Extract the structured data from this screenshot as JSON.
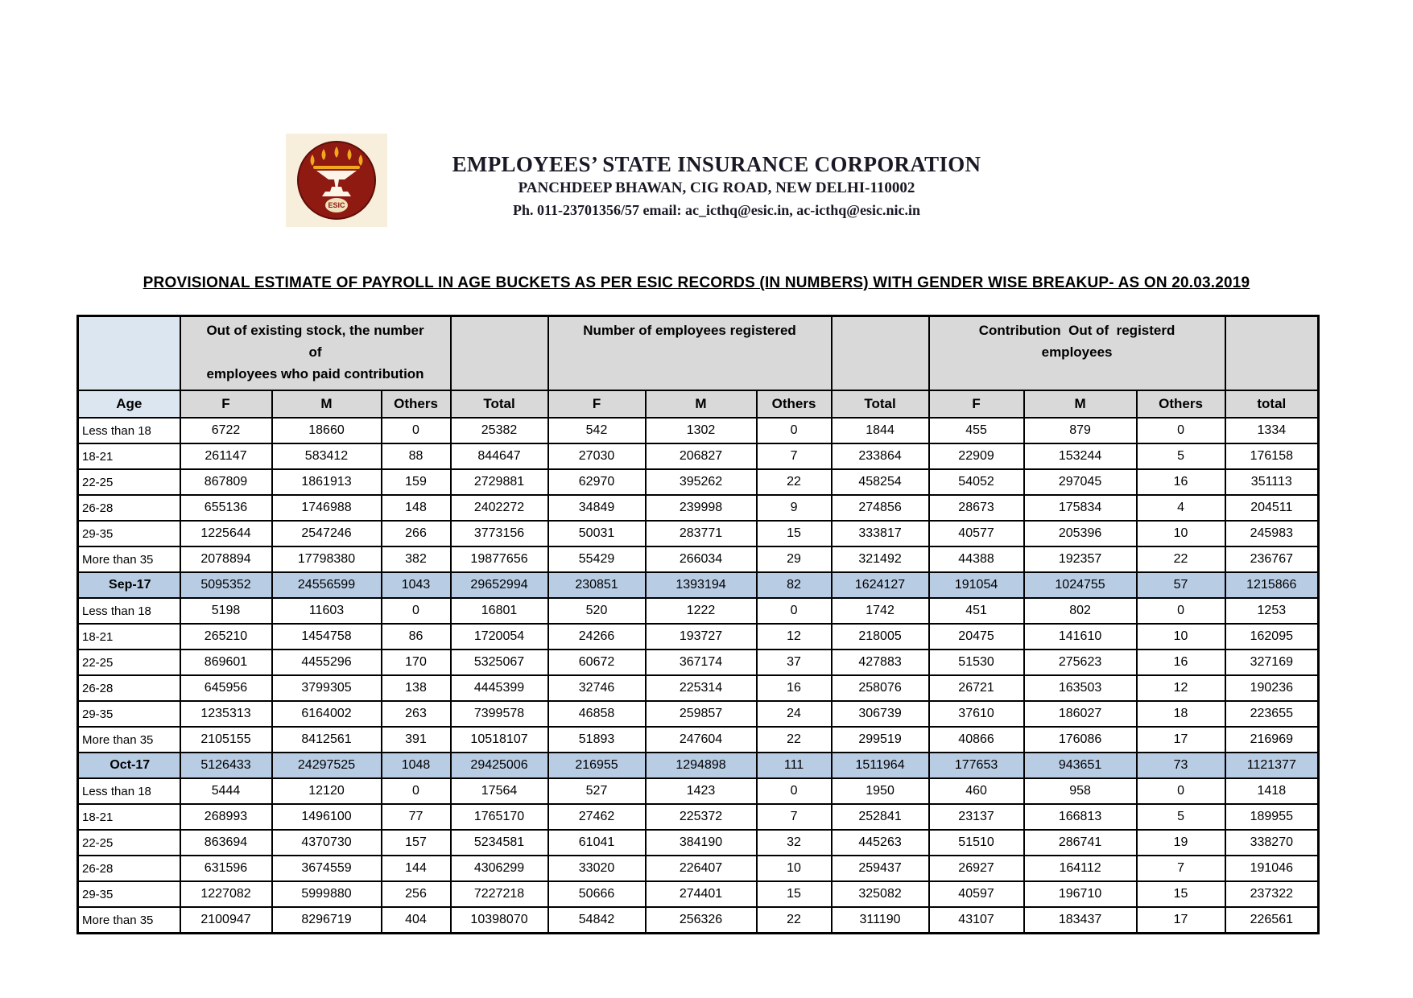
{
  "letterhead": {
    "org_name": "EMPLOYEES’ STATE INSURANCE CORPORATION",
    "address_line": "PANCHDEEP BHAWAN, CIG ROAD, NEW DELHI-110002",
    "contact_line": "Ph. 011-23701356/57 email: ac_icthq@esic.in, ac-icthq@esic.nic.in",
    "logo_text": "ESIC"
  },
  "document_title": "PROVISIONAL ESTIMATE OF PAYROLL IN AGE BUCKETS AS PER ESIC RECORDS (IN NUMBERS) WITH GENDER WISE BREAKUP- AS ON 20.03.2019",
  "colors": {
    "header_gray": "#d9d9d9",
    "age_header_blue": "#dce6f1",
    "summary_row_blue": "#b8cce4",
    "logo_maroon": "#8e1a12",
    "logo_gold": "#f2a71e",
    "logo_cream": "#f7efdb"
  },
  "table": {
    "group_headers": {
      "paid_contribution": "Out of existing stock, the number\nof\nemployees who paid contribution",
      "registered": "Number of employees registered",
      "contribution_registered": "Contribution  Out of  registerd\nemployees"
    },
    "columns": [
      "Age",
      "F",
      "M",
      "Others",
      "Total",
      "F",
      "M",
      "Others",
      "Total",
      "F",
      "M",
      "Others",
      "total"
    ],
    "rows": [
      {
        "label": "Less than 18",
        "type": "data",
        "values": [
          6722,
          18660,
          0,
          25382,
          542,
          1302,
          0,
          1844,
          455,
          879,
          0,
          1334
        ]
      },
      {
        "label": "18-21",
        "type": "data",
        "values": [
          261147,
          583412,
          88,
          844647,
          27030,
          206827,
          7,
          233864,
          22909,
          153244,
          5,
          176158
        ]
      },
      {
        "label": "22-25",
        "type": "data",
        "values": [
          867809,
          1861913,
          159,
          2729881,
          62970,
          395262,
          22,
          458254,
          54052,
          297045,
          16,
          351113
        ]
      },
      {
        "label": "26-28",
        "type": "data",
        "values": [
          655136,
          1746988,
          148,
          2402272,
          34849,
          239998,
          9,
          274856,
          28673,
          175834,
          4,
          204511
        ]
      },
      {
        "label": "29-35",
        "type": "data",
        "values": [
          1225644,
          2547246,
          266,
          3773156,
          50031,
          283771,
          15,
          333817,
          40577,
          205396,
          10,
          245983
        ]
      },
      {
        "label": "More than 35",
        "type": "data",
        "values": [
          2078894,
          17798380,
          382,
          19877656,
          55429,
          266034,
          29,
          321492,
          44388,
          192357,
          22,
          236767
        ]
      },
      {
        "label": "Sep-17",
        "type": "summary",
        "values": [
          5095352,
          24556599,
          1043,
          29652994,
          230851,
          1393194,
          82,
          1624127,
          191054,
          1024755,
          57,
          1215866
        ]
      },
      {
        "label": "Less than 18",
        "type": "data",
        "values": [
          5198,
          11603,
          0,
          16801,
          520,
          1222,
          0,
          1742,
          451,
          802,
          0,
          1253
        ]
      },
      {
        "label": "18-21",
        "type": "data",
        "values": [
          265210,
          1454758,
          86,
          1720054,
          24266,
          193727,
          12,
          218005,
          20475,
          141610,
          10,
          162095
        ]
      },
      {
        "label": "22-25",
        "type": "data",
        "values": [
          869601,
          4455296,
          170,
          5325067,
          60672,
          367174,
          37,
          427883,
          51530,
          275623,
          16,
          327169
        ]
      },
      {
        "label": "26-28",
        "type": "data",
        "values": [
          645956,
          3799305,
          138,
          4445399,
          32746,
          225314,
          16,
          258076,
          26721,
          163503,
          12,
          190236
        ]
      },
      {
        "label": "29-35",
        "type": "data",
        "values": [
          1235313,
          6164002,
          263,
          7399578,
          46858,
          259857,
          24,
          306739,
          37610,
          186027,
          18,
          223655
        ]
      },
      {
        "label": "More than 35",
        "type": "data",
        "values": [
          2105155,
          8412561,
          391,
          10518107,
          51893,
          247604,
          22,
          299519,
          40866,
          176086,
          17,
          216969
        ]
      },
      {
        "label": "Oct-17",
        "type": "summary",
        "values": [
          5126433,
          24297525,
          1048,
          29425006,
          216955,
          1294898,
          111,
          1511964,
          177653,
          943651,
          73,
          1121377
        ]
      },
      {
        "label": "Less than 18",
        "type": "data",
        "values": [
          5444,
          12120,
          0,
          17564,
          527,
          1423,
          0,
          1950,
          460,
          958,
          0,
          1418
        ]
      },
      {
        "label": "18-21",
        "type": "data",
        "values": [
          268993,
          1496100,
          77,
          1765170,
          27462,
          225372,
          7,
          252841,
          23137,
          166813,
          5,
          189955
        ]
      },
      {
        "label": "22-25",
        "type": "data",
        "values": [
          863694,
          4370730,
          157,
          5234581,
          61041,
          384190,
          32,
          445263,
          51510,
          286741,
          19,
          338270
        ]
      },
      {
        "label": "26-28",
        "type": "data",
        "values": [
          631596,
          3674559,
          144,
          4306299,
          33020,
          226407,
          10,
          259437,
          26927,
          164112,
          7,
          191046
        ]
      },
      {
        "label": "29-35",
        "type": "data",
        "values": [
          1227082,
          5999880,
          256,
          7227218,
          50666,
          274401,
          15,
          325082,
          40597,
          196710,
          15,
          237322
        ]
      },
      {
        "label": "More than 35",
        "type": "data",
        "values": [
          2100947,
          8296719,
          404,
          10398070,
          54842,
          256326,
          22,
          311190,
          43107,
          183437,
          17,
          226561
        ]
      }
    ]
  }
}
